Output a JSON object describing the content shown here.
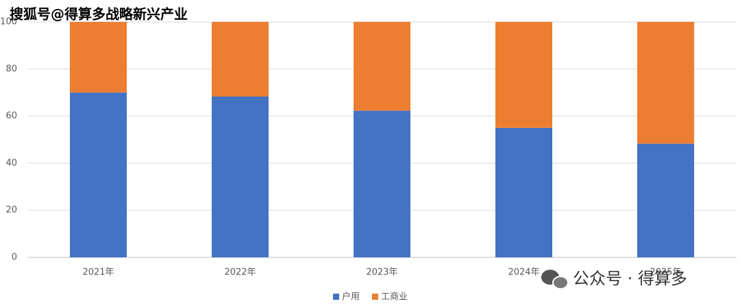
{
  "chart_data": {
    "type": "stacked-bar",
    "categories": [
      "2021年",
      "2022年",
      "2023年",
      "2024年",
      "2025年"
    ],
    "series": [
      {
        "name": "户用",
        "color": "#4472c4",
        "values": [
          70,
          68.3,
          62.3,
          55,
          48.3
        ]
      },
      {
        "name": "工商业",
        "color": "#ed7d31",
        "values": [
          30,
          31.7,
          37.7,
          45,
          51.7
        ]
      }
    ],
    "ylim": [
      0,
      100
    ],
    "yticks": [
      0,
      20,
      40,
      60,
      80,
      100
    ],
    "grid": true,
    "legend": "bottom",
    "watermarks": [
      "搜狐号@得算多战略新兴产业",
      "公众号 · 得算多"
    ]
  }
}
